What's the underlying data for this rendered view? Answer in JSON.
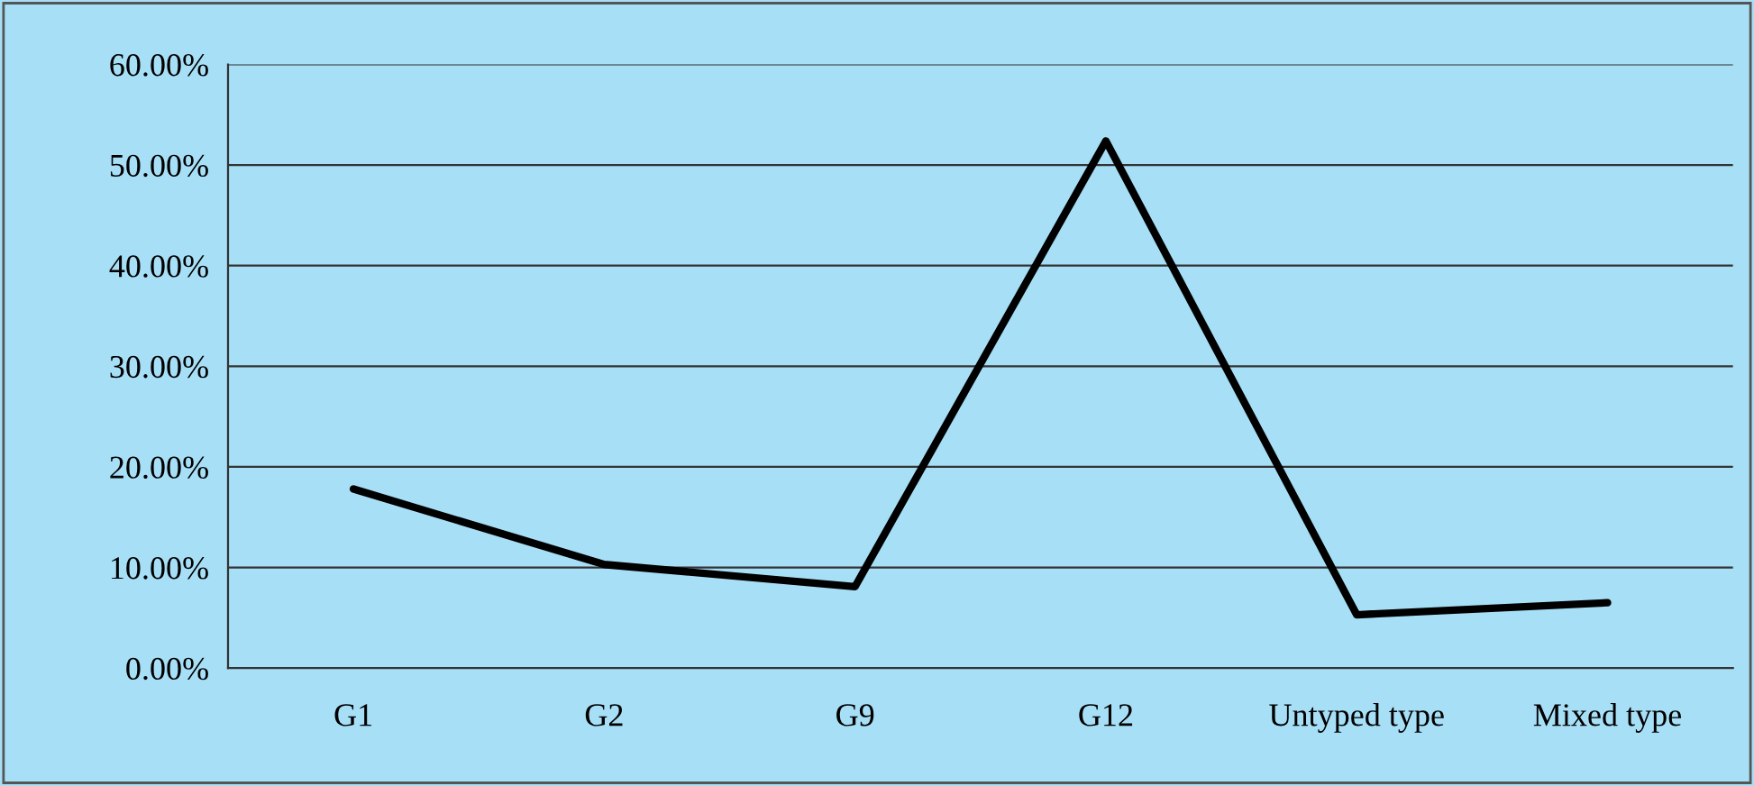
{
  "chart_data": {
    "type": "line",
    "categories": [
      "G1",
      "G2",
      "G9",
      "G12",
      "Untyped type",
      "Mixed type"
    ],
    "series": [
      {
        "color": "#000000",
        "values": [
          17.8,
          10.3,
          8.1,
          52.4,
          5.3,
          6.5
        ]
      }
    ],
    "ylim": [
      0,
      60
    ],
    "yticks": [
      {
        "value": 0,
        "label": "0.00%"
      },
      {
        "value": 10,
        "label": "10.00%"
      },
      {
        "value": 20,
        "label": "20.00%"
      },
      {
        "value": 30,
        "label": "30.00%"
      },
      {
        "value": 40,
        "label": "40.00%"
      },
      {
        "value": 50,
        "label": "50.00%"
      },
      {
        "value": 60,
        "label": "60.00%"
      }
    ],
    "grid": "y",
    "marker": "none",
    "line_style": "solid"
  }
}
